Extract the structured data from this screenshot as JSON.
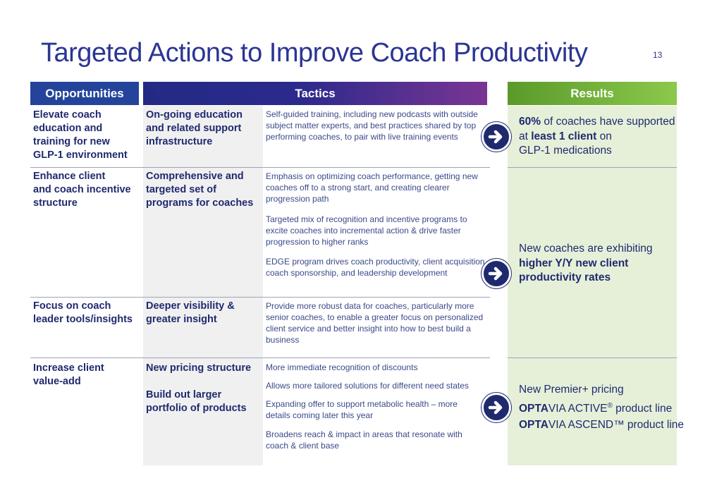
{
  "title": "Targeted Actions to Improve Coach Productivity",
  "page_number": "13",
  "headers": {
    "opportunities": "Opportunities",
    "tactics": "Tactics",
    "results": "Results"
  },
  "rows": [
    {
      "opportunity": "Elevate coach\neducation and\ntraining for new\nGLP-1 environment",
      "tactic": "On-going education\nand related support\ninfrastructure",
      "descriptions": [
        "Self-guided training, including new podcasts with outside\nsubject matter experts, and best practices shared by top\nperforming coaches, to pair with live training events"
      ]
    },
    {
      "opportunity": "Enhance client\nand coach incentive\nstructure",
      "tactic": "Comprehensive and\ntargeted set of\nprograms for coaches",
      "descriptions": [
        "Emphasis on optimizing coach performance, getting new\ncoaches off to a strong start, and creating clearer\nprogression path",
        "Targeted mix of recognition and incentive programs to\nexcite coaches into incremental action & drive faster\nprogression to higher ranks",
        "EDGE program drives coach productivity, client acquisition,\ncoach sponsorship, and leadership development"
      ]
    },
    {
      "opportunity": "Focus on coach\nleader tools/insights",
      "tactic": "Deeper visibility &\ngreater insight",
      "descriptions": [
        "Provide more robust data for coaches, particularly more\nsenior coaches, to enable a greater focus on personalized\nclient service and better insight into how to best build a\nbusiness"
      ]
    },
    {
      "opportunity": "Increase client\nvalue-add",
      "tactics": [
        "New pricing structure",
        "Build out larger\nportfolio of products"
      ],
      "descriptions": [
        "More immediate recognition of discounts",
        "Allows more tailored solutions for different need states",
        "Expanding offer to support metabolic health – more\ndetails coming later this year",
        "Broadens reach & impact in areas that resonate with\ncoach & client base"
      ]
    }
  ],
  "results": {
    "r1": {
      "bold1": "60%",
      "text1": " of coaches have supported",
      "text2": "at ",
      "bold2": "least 1 client",
      "text3": " on",
      "text4": "GLP-1 medications"
    },
    "r2": {
      "text1": "New coaches are exhibiting",
      "bold1": "higher Y/Y new client",
      "bold2": "productivity rates"
    },
    "r3": {
      "text1": "New Premier+ pricing",
      "brand": "OPTA",
      "line2": "VIA ACTIVE",
      "reg": "®",
      "line2b": " product line",
      "line3": "VIA ASCEND™ product line"
    }
  },
  "icons": {
    "arrow": "arrow-right-circle-icon"
  },
  "colors": {
    "navy": "#1f2a6e",
    "opportunities_header": "#23449a",
    "results_bg": "#e6f0d9",
    "results_header": "#6fb03a"
  }
}
